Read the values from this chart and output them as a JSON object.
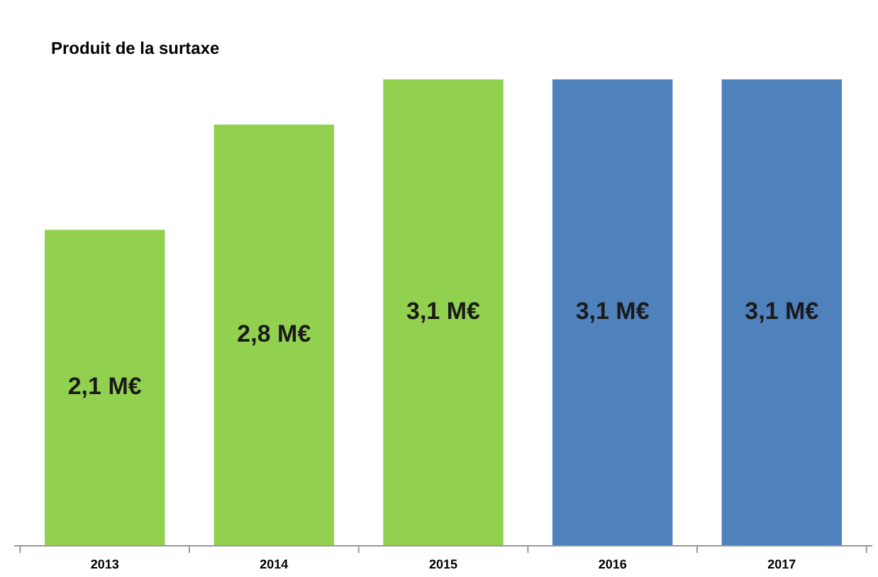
{
  "chart_data": {
    "type": "bar",
    "title": "Produit de la surtaxe",
    "categories": [
      "2013",
      "2014",
      "2015",
      "2016",
      "2017"
    ],
    "values": [
      2.1,
      2.8,
      3.1,
      3.1,
      3.1
    ],
    "value_labels": [
      "2,1 M€",
      "2,8 M€",
      "3,1 M€",
      "3,1 M€",
      "3,1 M€"
    ],
    "colors": [
      "#92d050",
      "#92d050",
      "#92d050",
      "#4f81bd",
      "#4f81bd"
    ]
  }
}
